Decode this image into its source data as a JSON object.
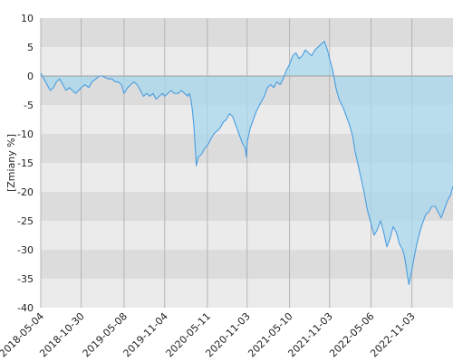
{
  "chart_data": {
    "type": "area",
    "title": "",
    "xlabel": "",
    "ylabel": "[Zmiany %]",
    "ylim": [
      -40,
      10
    ],
    "xlim": [
      "2018-05-04",
      "2023-05-04"
    ],
    "y_ticks": [
      10,
      5,
      0,
      -5,
      -10,
      -15,
      -20,
      -25,
      -30,
      -35,
      -40
    ],
    "x_ticks": [
      "2018-05-04",
      "2018-10-30",
      "2019-05-08",
      "2019-11-04",
      "2020-05-11",
      "2020-11-03",
      "2021-05-10",
      "2021-11-03",
      "2022-05-06",
      "2022-11-03"
    ],
    "grid": true,
    "legend": "none",
    "series": [
      {
        "x": [
          "2018-05-04",
          "2018-05-18",
          "2018-06-01",
          "2018-06-15",
          "2018-06-29",
          "2018-07-13",
          "2018-07-27",
          "2018-08-10",
          "2018-08-24",
          "2018-09-07",
          "2018-09-21",
          "2018-10-05",
          "2018-10-19",
          "2018-10-30",
          "2018-11-16",
          "2018-12-03",
          "2018-12-17",
          "2019-01-03",
          "2019-01-18",
          "2019-02-01",
          "2019-02-15",
          "2019-03-01",
          "2019-03-15",
          "2019-03-29",
          "2019-04-12",
          "2019-04-26",
          "2019-05-08",
          "2019-05-24",
          "2019-06-07",
          "2019-06-21",
          "2019-07-05",
          "2019-07-19",
          "2019-08-02",
          "2019-08-16",
          "2019-08-30",
          "2019-09-13",
          "2019-09-27",
          "2019-10-11",
          "2019-10-25",
          "2019-11-04",
          "2019-11-18",
          "2019-12-02",
          "2019-12-16",
          "2020-01-03",
          "2020-01-17",
          "2020-01-31",
          "2020-02-14",
          "2020-02-21",
          "2020-02-28",
          "2020-03-06",
          "2020-03-12",
          "2020-03-18",
          "2020-03-23",
          "2020-04-01",
          "2020-04-15",
          "2020-04-29",
          "2020-05-11",
          "2020-05-25",
          "2020-06-08",
          "2020-06-22",
          "2020-07-06",
          "2020-07-20",
          "2020-08-03",
          "2020-08-17",
          "2020-08-31",
          "2020-09-14",
          "2020-09-28",
          "2020-10-12",
          "2020-10-26",
          "2020-10-30",
          "2020-11-03",
          "2020-11-17",
          "2020-12-01",
          "2020-12-15",
          "2021-01-04",
          "2021-01-18",
          "2021-02-01",
          "2021-02-15",
          "2021-03-01",
          "2021-03-15",
          "2021-03-29",
          "2021-04-12",
          "2021-04-26",
          "2021-05-10",
          "2021-05-24",
          "2021-06-07",
          "2021-06-21",
          "2021-07-05",
          "2021-07-19",
          "2021-08-02",
          "2021-08-16",
          "2021-08-30",
          "2021-09-13",
          "2021-09-27",
          "2021-10-11",
          "2021-10-25",
          "2021-11-03",
          "2021-11-17",
          "2021-12-01",
          "2021-12-15",
          "2022-01-03",
          "2022-01-17",
          "2022-01-31",
          "2022-02-14",
          "2022-02-24",
          "2022-03-08",
          "2022-03-22",
          "2022-04-05",
          "2022-04-19",
          "2022-05-06",
          "2022-05-20",
          "2022-06-03",
          "2022-06-17",
          "2022-07-01",
          "2022-07-15",
          "2022-07-29",
          "2022-08-12",
          "2022-08-26",
          "2022-09-09",
          "2022-09-23",
          "2022-09-30",
          "2022-10-07",
          "2022-10-14",
          "2022-10-21",
          "2022-11-03",
          "2022-11-17",
          "2022-12-01",
          "2022-12-15",
          "2023-01-02",
          "2023-01-16",
          "2023-01-30",
          "2023-02-13",
          "2023-02-27",
          "2023-03-13",
          "2023-03-27",
          "2023-04-10",
          "2023-04-24",
          "2023-05-04"
        ],
        "y": [
          0.5,
          -0.5,
          -1.5,
          -2.5,
          -2.0,
          -1.0,
          -0.5,
          -1.5,
          -2.5,
          -2.0,
          -2.5,
          -3.0,
          -2.5,
          -2.0,
          -1.5,
          -2.0,
          -1.0,
          -0.5,
          0.0,
          0.0,
          -0.3,
          -0.5,
          -0.5,
          -1.0,
          -1.0,
          -1.5,
          -3.0,
          -2.0,
          -1.5,
          -1.0,
          -1.5,
          -2.5,
          -3.5,
          -3.0,
          -3.5,
          -3.0,
          -4.0,
          -3.5,
          -3.0,
          -3.5,
          -3.0,
          -2.5,
          -3.0,
          -3.0,
          -2.5,
          -3.0,
          -3.5,
          -3.0,
          -4.0,
          -6.0,
          -8.5,
          -12.0,
          -15.5,
          -14.0,
          -13.5,
          -12.5,
          -12.0,
          -11.0,
          -10.0,
          -9.5,
          -9.0,
          -8.0,
          -7.5,
          -6.5,
          -7.0,
          -8.5,
          -10.0,
          -11.5,
          -12.5,
          -14.0,
          -11.5,
          -9.0,
          -7.5,
          -6.0,
          -4.5,
          -3.5,
          -2.0,
          -1.5,
          -2.0,
          -1.0,
          -1.5,
          -0.5,
          1.0,
          2.0,
          3.5,
          4.0,
          3.0,
          3.5,
          4.5,
          4.0,
          3.5,
          4.5,
          5.0,
          5.5,
          6.0,
          4.5,
          3.0,
          1.0,
          -2.0,
          -4.0,
          -5.5,
          -7.0,
          -8.5,
          -10.5,
          -13.0,
          -15.0,
          -17.5,
          -20.0,
          -23.0,
          -25.5,
          -27.5,
          -26.5,
          -25.0,
          -27.0,
          -29.5,
          -28.0,
          -26.0,
          -27.0,
          -29.0,
          -30.0,
          -31.0,
          -32.5,
          -34.5,
          -36.0,
          -33.5,
          -30.5,
          -28.0,
          -26.0,
          -24.0,
          -23.5,
          -22.5,
          -22.5,
          -23.5,
          -24.5,
          -23.0,
          -21.5,
          -20.5,
          -19.0
        ]
      }
    ],
    "colors": {
      "line": "#4a9de0",
      "fill": "#a8d8ee",
      "band_dark": "#dcdcdc",
      "band_light": "#ebebeb",
      "grid_vertical": "#b4b4b4",
      "zero_line": "#a0a0a0"
    }
  }
}
